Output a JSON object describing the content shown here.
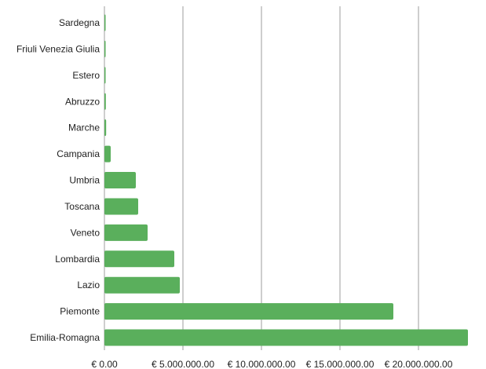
{
  "chart_data": {
    "type": "bar",
    "orientation": "horizontal",
    "categories": [
      "Sardegna",
      "Friuli Venezia Giulia",
      "Estero",
      "Abruzzo",
      "Marche",
      "Campania",
      "Umbria",
      "Toscana",
      "Veneto",
      "Lombardia",
      "Lazio",
      "Piemonte",
      "Emilia-Romagna"
    ],
    "values": [
      20000,
      40000,
      60000,
      90000,
      110000,
      400000,
      2000000,
      2150000,
      2750000,
      4450000,
      4800000,
      18400000,
      23150000
    ],
    "xlim": [
      0,
      24000000
    ],
    "xticks": [
      0,
      5000000,
      10000000,
      15000000,
      20000000
    ],
    "xtick_labels": [
      "€ 0.00",
      "€ 5.000.000.00",
      "€ 10.000.000.00",
      "€ 15.000.000.00",
      "€ 20.000.000.00"
    ],
    "title": "",
    "xlabel": "",
    "ylabel": "",
    "grid": "vertical",
    "legend": "none",
    "bar_color": "#5aaf5c",
    "grid_color": "#9e9e9e"
  }
}
